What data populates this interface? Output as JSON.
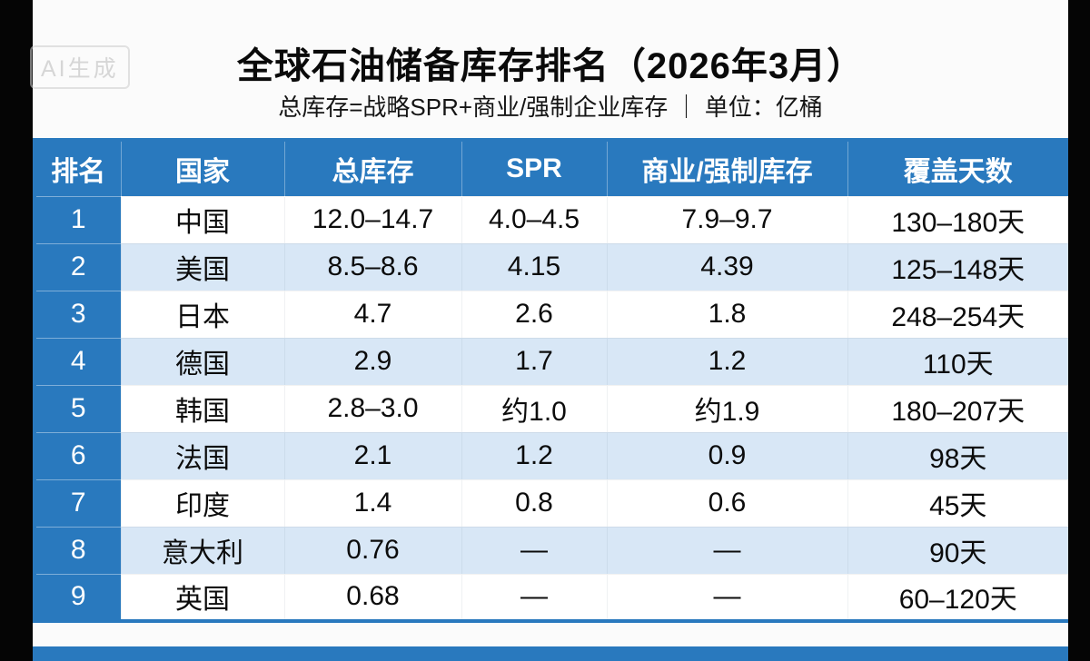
{
  "watermark": "AI生成",
  "title": "全球石油储备库存排名（2026年3月）",
  "subtitle": "总库存=战略SPR+商业/强制企业库存 ｜ 单位：亿桶",
  "colors": {
    "header_blue": "#2979be",
    "row_alt_blue": "#d8e7f6",
    "bottom_bar_blue": "#2979be",
    "side_bar_black": "#050505"
  },
  "chart_data": {
    "type": "table",
    "title": "全球石油储备库存排名（2026年3月）",
    "unit": "亿桶",
    "columns": [
      "排名",
      "国家",
      "总库存",
      "SPR",
      "商业/强制库存",
      "覆盖天数"
    ],
    "rows": [
      [
        "1",
        "中国",
        "12.0–14.7",
        "4.0–4.5",
        "7.9–9.7",
        "130–180天"
      ],
      [
        "2",
        "美国",
        "8.5–8.6",
        "4.15",
        "4.39",
        "125–148天"
      ],
      [
        "3",
        "日本",
        "4.7",
        "2.6",
        "1.8",
        "248–254天"
      ],
      [
        "4",
        "德国",
        "2.9",
        "1.7",
        "1.2",
        "110天"
      ],
      [
        "5",
        "韩国",
        "2.8–3.0",
        "约1.0",
        "约1.9",
        "180–207天"
      ],
      [
        "6",
        "法国",
        "2.1",
        "1.2",
        "0.9",
        "98天"
      ],
      [
        "7",
        "印度",
        "1.4",
        "0.8",
        "0.6",
        "45天"
      ],
      [
        "8",
        "意大利",
        "0.76",
        "—",
        "—",
        "90天"
      ],
      [
        "9",
        "英国",
        "0.68",
        "—",
        "—",
        "60–120天"
      ]
    ]
  }
}
